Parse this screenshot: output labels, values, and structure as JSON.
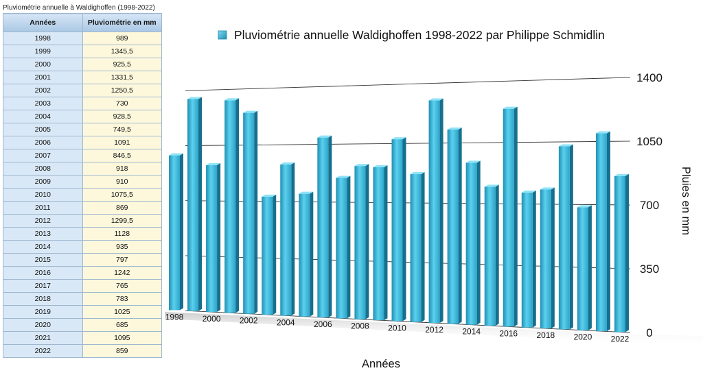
{
  "table": {
    "title": "Pluviométrie annuelle à Waldighoffen (1998-2022)",
    "headers": [
      "Années",
      "Pluviométrie en mm"
    ],
    "rows": [
      [
        "1998",
        "989"
      ],
      [
        "1999",
        "1345,5"
      ],
      [
        "2000",
        "925,5"
      ],
      [
        "2001",
        "1331,5"
      ],
      [
        "2002",
        "1250,5"
      ],
      [
        "2003",
        "730"
      ],
      [
        "2004",
        "928,5"
      ],
      [
        "2005",
        "749,5"
      ],
      [
        "2006",
        "1091"
      ],
      [
        "2007",
        "846,5"
      ],
      [
        "2008",
        "918"
      ],
      [
        "2009",
        "910"
      ],
      [
        "2010",
        "1075,5"
      ],
      [
        "2011",
        "869"
      ],
      [
        "2012",
        "1299,5"
      ],
      [
        "2013",
        "1128"
      ],
      [
        "2014",
        "935"
      ],
      [
        "2015",
        "797"
      ],
      [
        "2016",
        "1242"
      ],
      [
        "2017",
        "765"
      ],
      [
        "2018",
        "783"
      ],
      [
        "2019",
        "1025"
      ],
      [
        "2020",
        "685"
      ],
      [
        "2021",
        "1095"
      ],
      [
        "2022",
        "859"
      ]
    ]
  },
  "chart_data": {
    "type": "bar",
    "title": "",
    "legend": [
      "Pluviométrie annuelle Waldighoffen 1998-2022 par Philippe Schmidlin"
    ],
    "legend_position": "top",
    "xlabel": "Années",
    "ylabel": "Pluies en mm",
    "ylim": [
      0,
      1400
    ],
    "yticks": [
      "0",
      "350",
      "700",
      "1050",
      "1400"
    ],
    "grid": true,
    "categories": [
      "1998",
      "1999",
      "2000",
      "2001",
      "2002",
      "2003",
      "2004",
      "2005",
      "2006",
      "2007",
      "2008",
      "2009",
      "2010",
      "2011",
      "2012",
      "2013",
      "2014",
      "2015",
      "2016",
      "2017",
      "2018",
      "2019",
      "2020",
      "2021",
      "2022"
    ],
    "xtick_labels": [
      "1998",
      "2000",
      "2002",
      "2004",
      "2006",
      "2008",
      "2010",
      "2012",
      "2014",
      "2016",
      "2018",
      "2020",
      "2022"
    ],
    "series": [
      {
        "name": "Pluviométrie annuelle Waldighoffen 1998-2022 par Philippe Schmidlin",
        "color": "#3db6d9",
        "values": [
          989,
          1345.5,
          925.5,
          1331.5,
          1250.5,
          730,
          928.5,
          749.5,
          1091,
          846.5,
          918,
          910,
          1075.5,
          869,
          1299.5,
          1128,
          935,
          797,
          1242,
          765,
          783,
          1025,
          685,
          1095,
          859
        ]
      }
    ]
  }
}
